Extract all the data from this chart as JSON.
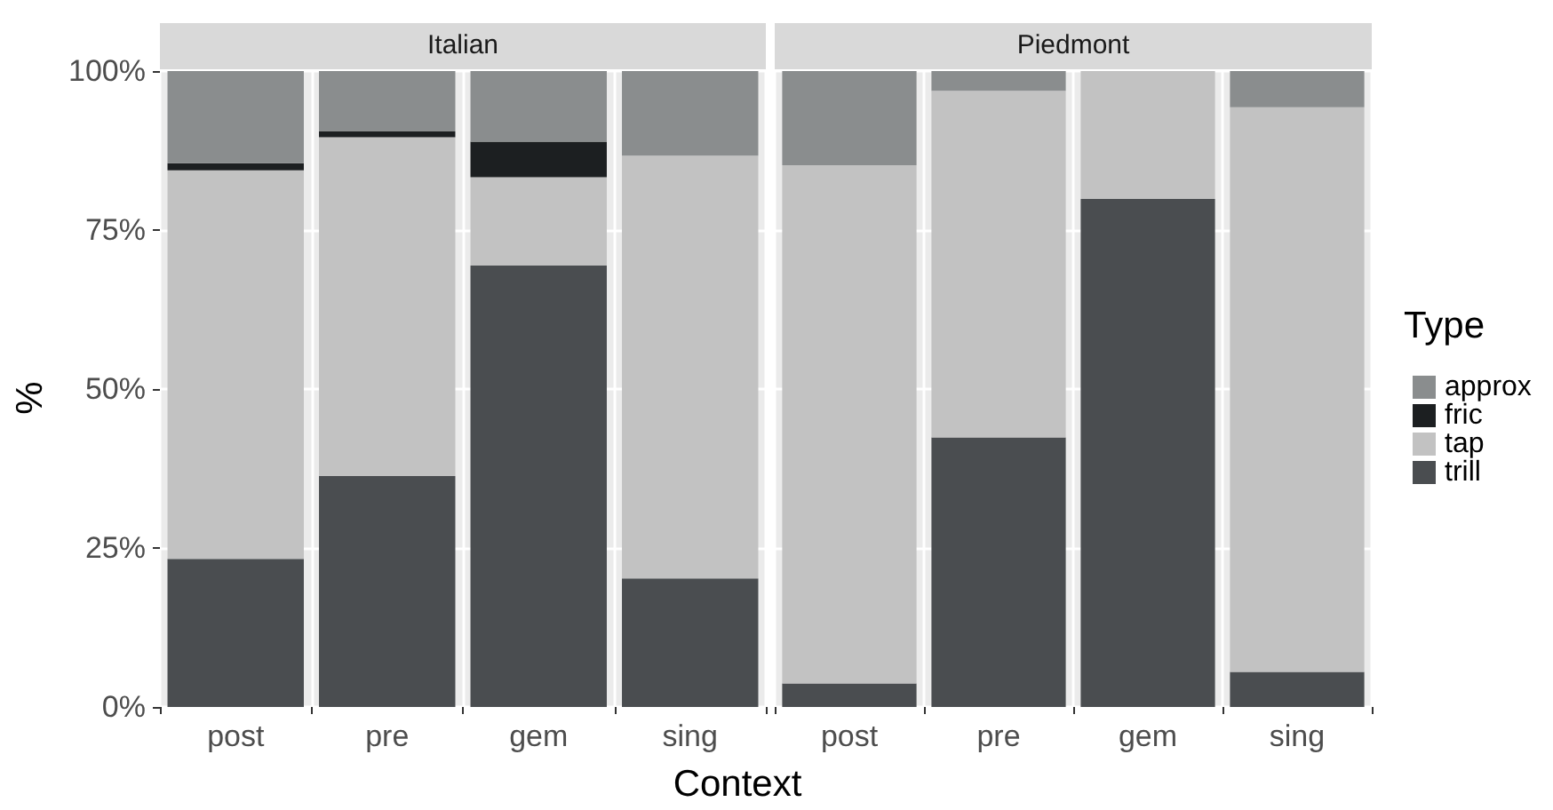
{
  "chart_data": [
    {
      "type": "bar",
      "title": "Italian",
      "xlabel": "Context",
      "ylabel": "%",
      "categories": [
        "post",
        "pre",
        "gem",
        "sing"
      ],
      "stacked": true,
      "series": [
        {
          "color": "#4a4d50",
          "values": [
            23.3,
            36.3,
            69.4,
            20.2
          ]
        },
        {
          "color": "#c2c2c2",
          "values": [
            61.1,
            53.3,
            13.9,
            66.5
          ]
        },
        {
          "color": "#1c1f21",
          "values": [
            1.1,
            0.9,
            5.6,
            0
          ]
        },
        {
          "color": "#8a8d8e",
          "values": [
            14.5,
            9.5,
            11.1,
            13.3
          ]
        }
      ],
      "ylim": [
        0,
        100
      ],
      "yticks": [
        {
          "value": 0,
          "label": "0%"
        },
        {
          "value": 25,
          "label": "25%"
        },
        {
          "value": 50,
          "label": "50%"
        },
        {
          "value": 75,
          "label": "75%"
        },
        {
          "value": 100,
          "label": "100%"
        }
      ],
      "grid": true,
      "legend": false
    },
    {
      "type": "bar",
      "title": "Piedmont",
      "legend_title": "Type",
      "categories": [
        "post",
        "pre",
        "gem",
        "sing"
      ],
      "stacked": true,
      "series": [
        {
          "name": "trill",
          "color": "#4a4d50",
          "values": [
            3.7,
            42.4,
            79.9,
            5.5
          ]
        },
        {
          "name": "tap",
          "color": "#c2c2c2",
          "values": [
            81.5,
            54.5,
            20.1,
            88.8
          ]
        },
        {
          "name": "fric",
          "color": "#1c1f21",
          "values": [
            0,
            0,
            0,
            0
          ]
        },
        {
          "name": "approx",
          "color": "#8a8d8e",
          "values": [
            14.8,
            3.1,
            0,
            5.7
          ]
        }
      ],
      "ylim": [
        0,
        100
      ],
      "yticks": [
        0,
        25,
        50,
        75,
        100
      ],
      "grid": true,
      "legend": "right",
      "tick_labels": "x"
    }
  ]
}
